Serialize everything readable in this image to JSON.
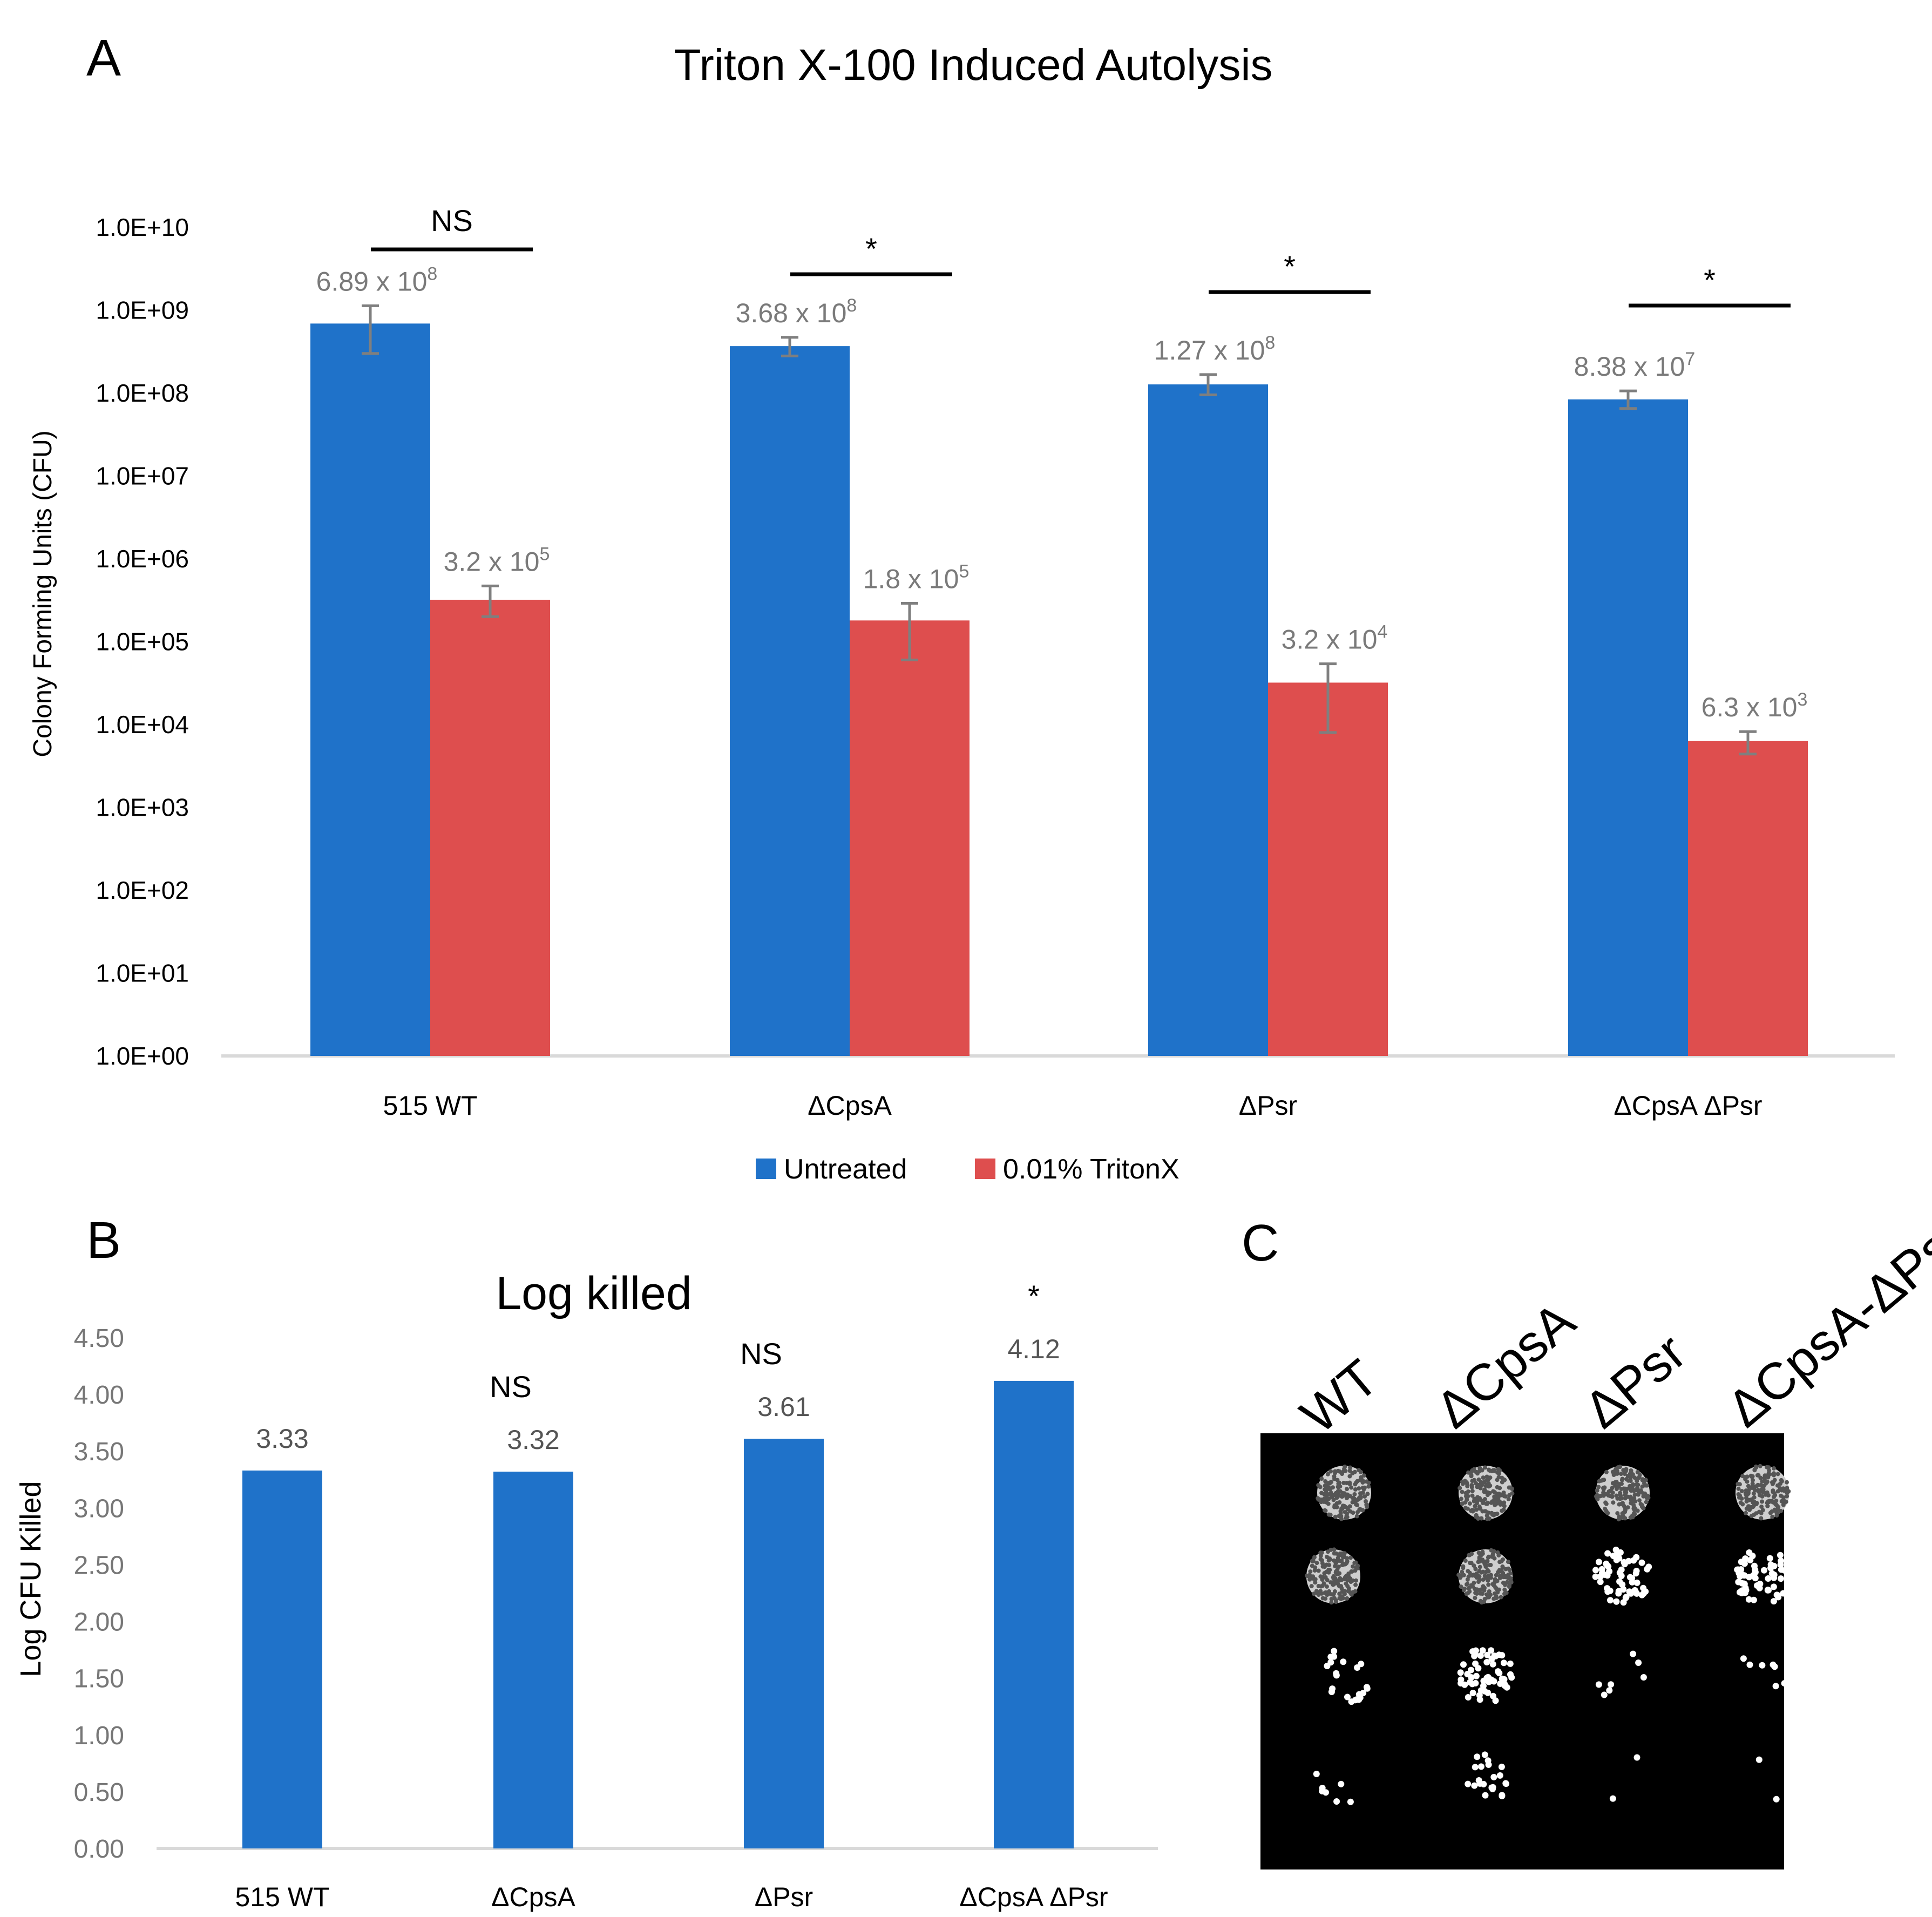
{
  "panels": {
    "a": "A",
    "b": "B",
    "c": "C"
  },
  "chart_data": [
    {
      "type": "bar",
      "title": "Triton X-100 Induced Autolysis",
      "ylabel": "Colony Forming Units (CFU)",
      "xlabel": "",
      "yscale": "log",
      "ylim": [
        1,
        10000000000
      ],
      "ytick_labels": [
        "1.0E+00",
        "1.0E+01",
        "1.0E+02",
        "1.0E+03",
        "1.0E+04",
        "1.0E+05",
        "1.0E+06",
        "1.0E+07",
        "1.0E+08",
        "1.0E+09",
        "1.0E+10"
      ],
      "categories": [
        "515 WT",
        "ΔCpsA",
        "ΔPsr",
        "ΔCpsA ΔPsr"
      ],
      "series": [
        {
          "name": "Untreated",
          "color": "#1f72c9",
          "values": [
            689000000,
            368000000,
            127000000,
            83800000
          ],
          "err_low": [
            300000000,
            280000000,
            95000000,
            65000000
          ],
          "err_high": [
            1130000000,
            470000000,
            167000000,
            106000000
          ],
          "labels": [
            {
              "base": "6.89 x 10",
              "exp": "8"
            },
            {
              "base": "3.68 x 10",
              "exp": "8"
            },
            {
              "base": "1.27 x 10",
              "exp": "8"
            },
            {
              "base": "8.38 x 10",
              "exp": "7"
            }
          ]
        },
        {
          "name": "0.01% TritonX",
          "color": "#de4e4e",
          "values": [
            320000,
            180000,
            32000,
            6300
          ],
          "err_low": [
            200000,
            60000,
            8000,
            4400
          ],
          "err_high": [
            470000,
            290000,
            54000,
            8200
          ],
          "labels": [
            {
              "base": "3.2 x 10",
              "exp": "5"
            },
            {
              "base": "1.8 x 10",
              "exp": "5"
            },
            {
              "base": "3.2 x 10",
              "exp": "4"
            },
            {
              "base": "6.3 x 10",
              "exp": "3"
            }
          ]
        }
      ],
      "significance": [
        "NS",
        "*",
        "*",
        "*"
      ],
      "legend": [
        "Untreated",
        "0.01% TritonX"
      ],
      "legend_position": "bottom-center",
      "grid": false
    },
    {
      "type": "bar",
      "title": "Log killed",
      "ylabel": "Log CFU Killed",
      "xlabel": "",
      "ylim": [
        0,
        4.5
      ],
      "ytick_labels": [
        "0.00",
        "0.50",
        "1.00",
        "1.50",
        "2.00",
        "2.50",
        "3.00",
        "3.50",
        "4.00",
        "4.50"
      ],
      "categories": [
        "515 WT",
        "ΔCpsA",
        "ΔPsr",
        "ΔCpsA ΔPsr"
      ],
      "values": [
        3.33,
        3.32,
        3.61,
        4.12
      ],
      "value_labels": [
        "3.33",
        "3.32",
        "3.61",
        "4.12"
      ],
      "significance": [
        "",
        "NS",
        "NS",
        "*"
      ],
      "color": "#1f72c9",
      "grid": false
    }
  ],
  "plate": {
    "columns": [
      "WT",
      "ΔCpsA",
      "ΔPsr",
      "ΔCpsA-ΔPsr"
    ]
  }
}
